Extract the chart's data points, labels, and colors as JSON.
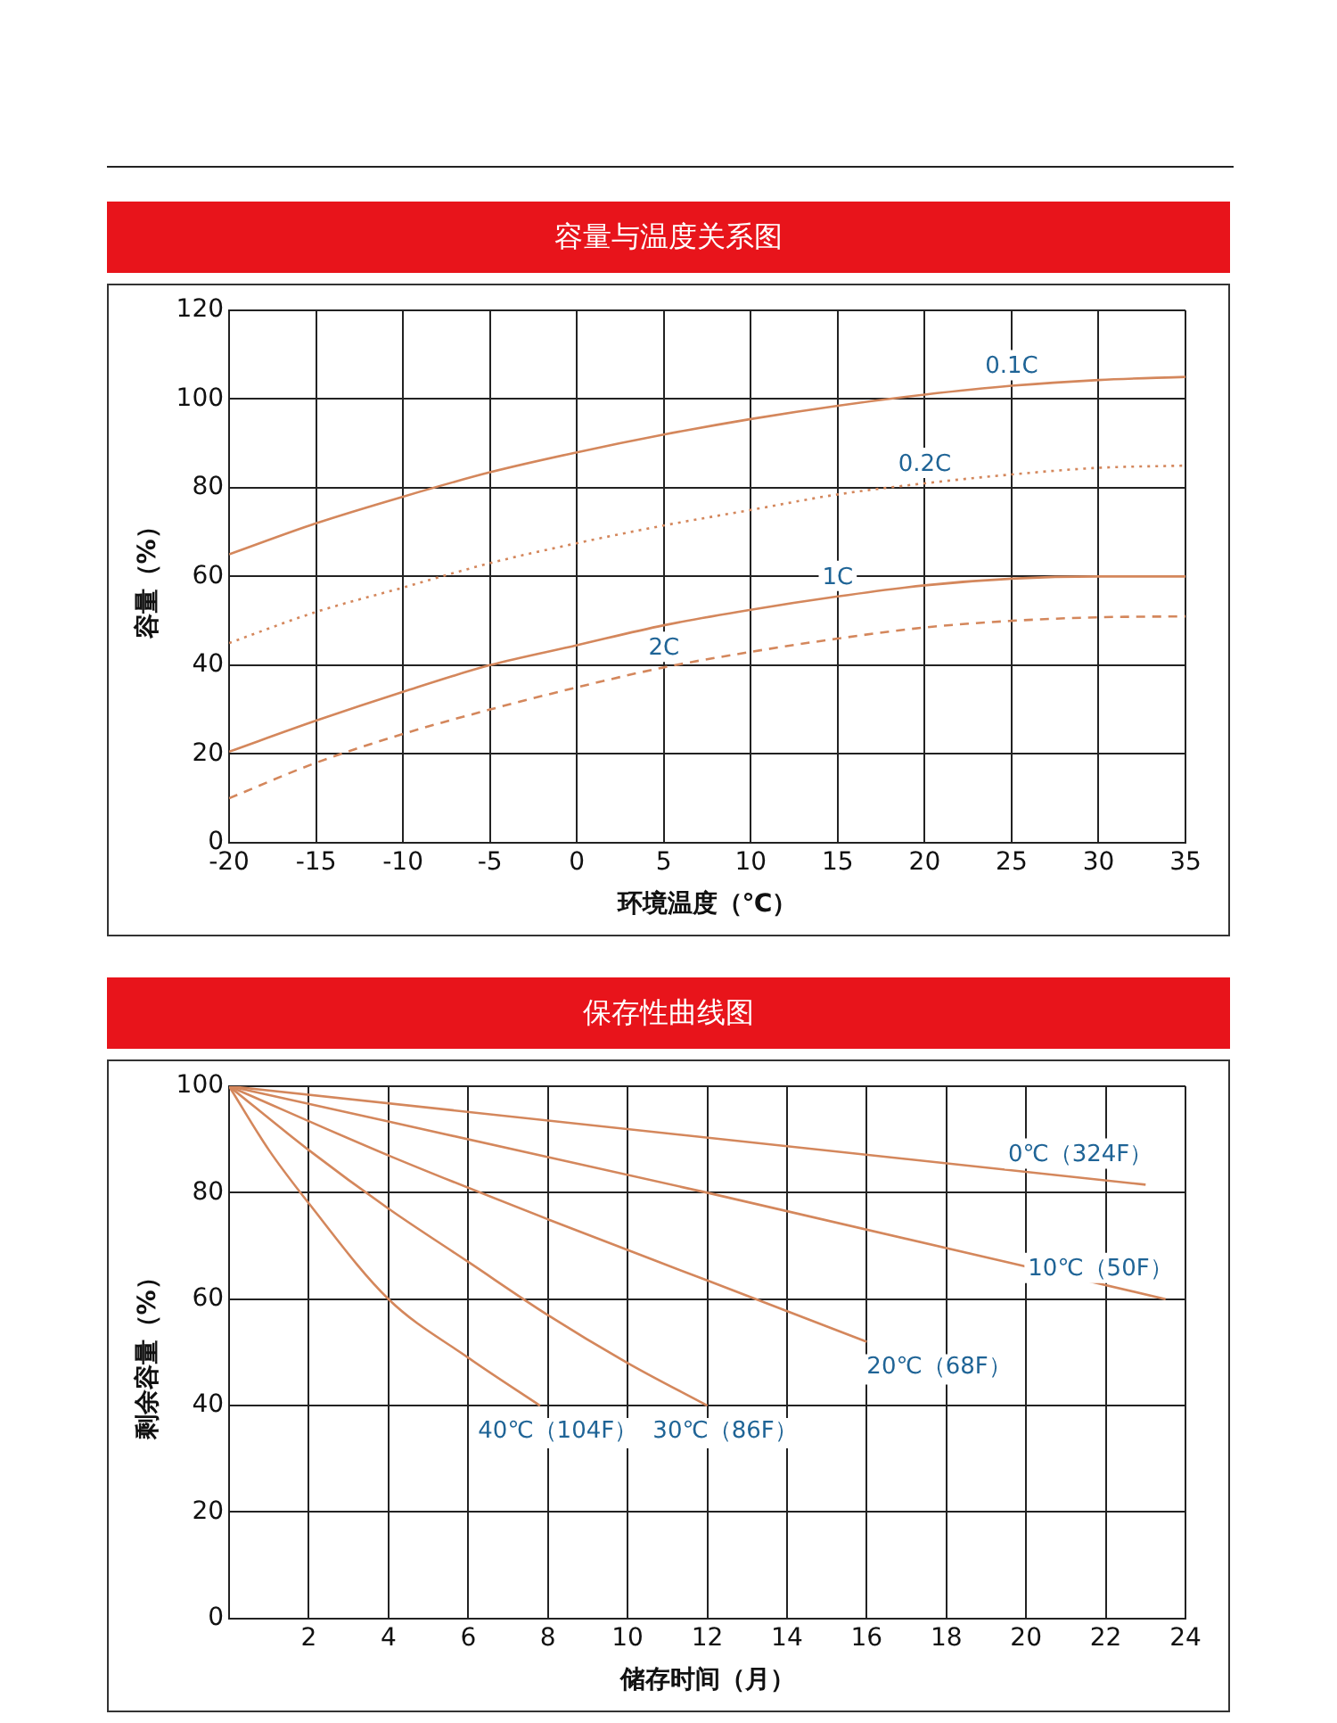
{
  "chart_data": [
    {
      "type": "line",
      "title": "容量与温度关系图",
      "xlabel": "环境温度（℃）",
      "ylabel": "容量（%）",
      "x": [
        -20,
        -15,
        -10,
        -5,
        0,
        5,
        10,
        15,
        20,
        25,
        30,
        35
      ],
      "xlim": [
        -20,
        35
      ],
      "xticks": [
        -20,
        -15,
        -10,
        -5,
        0,
        5,
        10,
        15,
        20,
        25,
        30,
        35
      ],
      "ylim": [
        0,
        120
      ],
      "yticks": [
        0,
        20,
        40,
        60,
        80,
        100,
        120
      ],
      "grid": true,
      "legend": false,
      "marker": "none",
      "series": [
        {
          "name": "0.1C",
          "color": "#d4875c",
          "line_style": "solid",
          "values": [
            65,
            72,
            78,
            83.5,
            88,
            92,
            95.5,
            98.5,
            101,
            103,
            104.3,
            105
          ]
        },
        {
          "name": "0.2C",
          "color": "#d4875c",
          "line_style": "dotted",
          "values": [
            45,
            52,
            57.5,
            63,
            67.5,
            71.5,
            75,
            78.5,
            81,
            83,
            84.5,
            85
          ]
        },
        {
          "name": "1C",
          "color": "#d4875c",
          "line_style": "solid",
          "values": [
            20.5,
            27.5,
            34,
            40,
            44.5,
            49,
            52.5,
            55.5,
            58,
            59.5,
            60,
            60
          ]
        },
        {
          "name": "2C",
          "color": "#d4875c",
          "line_style": "dashed",
          "values": [
            10,
            18,
            24.5,
            30,
            35,
            39.5,
            43,
            46,
            48.5,
            50,
            50.8,
            51
          ]
        }
      ]
    },
    {
      "type": "line",
      "title": "保存性曲线图",
      "xlabel": "储存时间（月）",
      "ylabel": "剩余容量（%）",
      "xlim": [
        0,
        24
      ],
      "xticks": [
        {
          "value": 0,
          "label": null
        },
        2,
        4,
        6,
        8,
        10,
        12,
        14,
        16,
        18,
        20,
        22,
        24
      ],
      "ylim": [
        0,
        100
      ],
      "yticks": [
        0,
        20,
        40,
        60,
        80,
        100
      ],
      "grid": true,
      "legend": false,
      "marker": "none",
      "series": [
        {
          "name": "0℃（324F）",
          "color": "#d4875c",
          "line_style": "solid",
          "x": [
            0,
            23
          ],
          "values": [
            100,
            81.5
          ]
        },
        {
          "name": "10℃（50F）",
          "color": "#d4875c",
          "line_style": "solid",
          "x": [
            0,
            12,
            23.5
          ],
          "values": [
            100,
            80,
            60
          ]
        },
        {
          "name": "20℃（68F）",
          "color": "#d4875c",
          "line_style": "solid",
          "x": [
            0,
            4,
            8,
            12,
            16
          ],
          "values": [
            100,
            87,
            75,
            63.5,
            52
          ]
        },
        {
          "name": "30℃（86F）",
          "color": "#d4875c",
          "line_style": "solid",
          "x": [
            0,
            2,
            4,
            6,
            8,
            10,
            12
          ],
          "values": [
            100,
            88,
            77,
            67,
            57,
            48,
            40
          ]
        },
        {
          "name": "40℃（104F）",
          "color": "#d4875c",
          "line_style": "solid",
          "x": [
            0,
            1,
            2,
            4,
            6,
            7.8
          ],
          "values": [
            100,
            88,
            78,
            60,
            49,
            40
          ]
        }
      ]
    }
  ]
}
